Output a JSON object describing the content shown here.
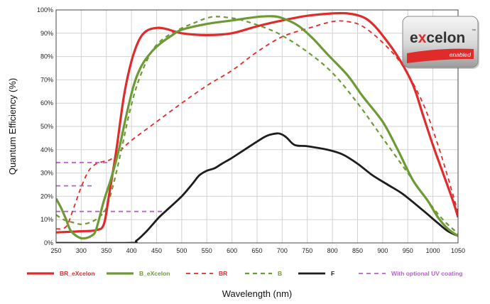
{
  "chart_data": {
    "type": "line",
    "xlabel": "Wavelength (nm)",
    "ylabel": "Quantum Efficiency (%)",
    "xlim": [
      250,
      1050
    ],
    "ylim": [
      0,
      100
    ],
    "xticks": [
      250,
      300,
      350,
      400,
      450,
      500,
      550,
      600,
      650,
      700,
      750,
      800,
      850,
      900,
      950,
      1000,
      1050
    ],
    "yticks": [
      {
        "v": 0,
        "label": "0%"
      },
      {
        "v": 10,
        "label": "10%"
      },
      {
        "v": 20,
        "label": "20%"
      },
      {
        "v": 30,
        "label": "30%"
      },
      {
        "v": 40,
        "label": "40%"
      },
      {
        "v": 50,
        "label": "50%"
      },
      {
        "v": 60,
        "label": "60%"
      },
      {
        "v": 70,
        "label": "70%"
      },
      {
        "v": 80,
        "label": "80%"
      },
      {
        "v": 90,
        "label": "90%"
      },
      {
        "v": 100,
        "label": "100%"
      }
    ],
    "grid": true,
    "legend_position": "bottom",
    "series": [
      {
        "name": "BR_eXcelon",
        "color": "#e02b2b",
        "dash": "solid",
        "width": 3.2,
        "points": [
          [
            250,
            4.5
          ],
          [
            300,
            5
          ],
          [
            330,
            5.5
          ],
          [
            345,
            8
          ],
          [
            355,
            20
          ],
          [
            370,
            40
          ],
          [
            385,
            63
          ],
          [
            400,
            78
          ],
          [
            415,
            87
          ],
          [
            430,
            91
          ],
          [
            450,
            92.3
          ],
          [
            470,
            91.8
          ],
          [
            500,
            90
          ],
          [
            550,
            89.2
          ],
          [
            600,
            90
          ],
          [
            650,
            93
          ],
          [
            700,
            95.5
          ],
          [
            750,
            97.5
          ],
          [
            800,
            98.5
          ],
          [
            830,
            98.5
          ],
          [
            860,
            97
          ],
          [
            880,
            94
          ],
          [
            900,
            89
          ],
          [
            930,
            80
          ],
          [
            960,
            68
          ],
          [
            980,
            55
          ],
          [
            1000,
            42
          ],
          [
            1020,
            30
          ],
          [
            1040,
            18
          ],
          [
            1050,
            11
          ]
        ]
      },
      {
        "name": "B_eXcelon",
        "color": "#6e9a35",
        "dash": "solid",
        "width": 3.2,
        "points": [
          [
            250,
            19
          ],
          [
            260,
            15
          ],
          [
            270,
            10
          ],
          [
            280,
            5
          ],
          [
            300,
            2
          ],
          [
            320,
            3
          ],
          [
            330,
            6
          ],
          [
            345,
            18
          ],
          [
            360,
            28
          ],
          [
            375,
            40
          ],
          [
            390,
            55
          ],
          [
            405,
            68
          ],
          [
            420,
            76
          ],
          [
            440,
            82
          ],
          [
            460,
            86
          ],
          [
            480,
            89
          ],
          [
            500,
            91.5
          ],
          [
            550,
            94
          ],
          [
            600,
            95.5
          ],
          [
            650,
            97
          ],
          [
            680,
            97.3
          ],
          [
            700,
            96.5
          ],
          [
            730,
            93.5
          ],
          [
            760,
            88
          ],
          [
            790,
            81
          ],
          [
            830,
            72
          ],
          [
            860,
            63
          ],
          [
            900,
            52
          ],
          [
            930,
            40
          ],
          [
            960,
            27
          ],
          [
            990,
            18
          ],
          [
            1010,
            11
          ],
          [
            1030,
            6
          ],
          [
            1050,
            3
          ]
        ]
      },
      {
        "name": "BR",
        "color": "#e02b2b",
        "dash": "6,5",
        "width": 1.8,
        "points": [
          [
            250,
            6
          ],
          [
            270,
            7
          ],
          [
            285,
            15
          ],
          [
            300,
            24
          ],
          [
            315,
            31
          ],
          [
            330,
            34
          ],
          [
            345,
            35
          ],
          [
            360,
            36
          ],
          [
            380,
            40
          ],
          [
            400,
            44
          ],
          [
            450,
            52
          ],
          [
            500,
            60
          ],
          [
            550,
            67.5
          ],
          [
            600,
            74
          ],
          [
            650,
            82
          ],
          [
            700,
            88.5
          ],
          [
            750,
            92
          ],
          [
            800,
            95
          ],
          [
            830,
            95
          ],
          [
            860,
            93
          ],
          [
            900,
            86
          ],
          [
            940,
            76
          ],
          [
            980,
            60
          ],
          [
            1010,
            42
          ],
          [
            1030,
            28
          ],
          [
            1050,
            13
          ]
        ]
      },
      {
        "name": "B",
        "color": "#6e9a35",
        "dash": "6,5",
        "width": 2.2,
        "points": [
          [
            250,
            12
          ],
          [
            265,
            10
          ],
          [
            280,
            9
          ],
          [
            300,
            8
          ],
          [
            320,
            9
          ],
          [
            335,
            11
          ],
          [
            350,
            15
          ],
          [
            365,
            26
          ],
          [
            380,
            40
          ],
          [
            395,
            55
          ],
          [
            410,
            67
          ],
          [
            430,
            78
          ],
          [
            450,
            85
          ],
          [
            480,
            90
          ],
          [
            520,
            94
          ],
          [
            560,
            97
          ],
          [
            600,
            96.5
          ],
          [
            630,
            95
          ],
          [
            670,
            92
          ],
          [
            700,
            89
          ],
          [
            750,
            82
          ],
          [
            800,
            73
          ],
          [
            850,
            60
          ],
          [
            900,
            45
          ],
          [
            950,
            30
          ],
          [
            990,
            18
          ],
          [
            1020,
            10
          ],
          [
            1050,
            4
          ]
        ]
      },
      {
        "name": "F",
        "color": "#1d1d1d",
        "dash": "solid",
        "width": 2.8,
        "points": [
          [
            250,
            0
          ],
          [
            395,
            0
          ],
          [
            410,
            1
          ],
          [
            430,
            5
          ],
          [
            455,
            11
          ],
          [
            475,
            15
          ],
          [
            500,
            20
          ],
          [
            520,
            25
          ],
          [
            535,
            29
          ],
          [
            550,
            31
          ],
          [
            565,
            32
          ],
          [
            580,
            34
          ],
          [
            600,
            36.5
          ],
          [
            625,
            40
          ],
          [
            650,
            43.5
          ],
          [
            670,
            46
          ],
          [
            690,
            47
          ],
          [
            700,
            46.5
          ],
          [
            710,
            45
          ],
          [
            725,
            42
          ],
          [
            750,
            41.5
          ],
          [
            790,
            40
          ],
          [
            820,
            38
          ],
          [
            850,
            34
          ],
          [
            880,
            29
          ],
          [
            910,
            25
          ],
          [
            940,
            21
          ],
          [
            980,
            14
          ],
          [
            1010,
            8.5
          ],
          [
            1030,
            5
          ],
          [
            1050,
            3
          ]
        ]
      },
      {
        "name": "With optional UV coating",
        "color": "#b563c7",
        "dash": "6,5",
        "width": 1.8,
        "segments": [
          [
            [
              250,
              34.5
            ],
            [
              355,
              34.5
            ]
          ],
          [
            [
              250,
              24.5
            ],
            [
              325,
              24.5
            ]
          ],
          [
            [
              250,
              13.5
            ],
            [
              470,
              13.5
            ]
          ]
        ]
      }
    ]
  },
  "logo": {
    "word_left": "e",
    "word_x": "x",
    "word_right": "celon",
    "tm": "™",
    "tag": "enabled",
    "accent": "#e02b2b"
  }
}
